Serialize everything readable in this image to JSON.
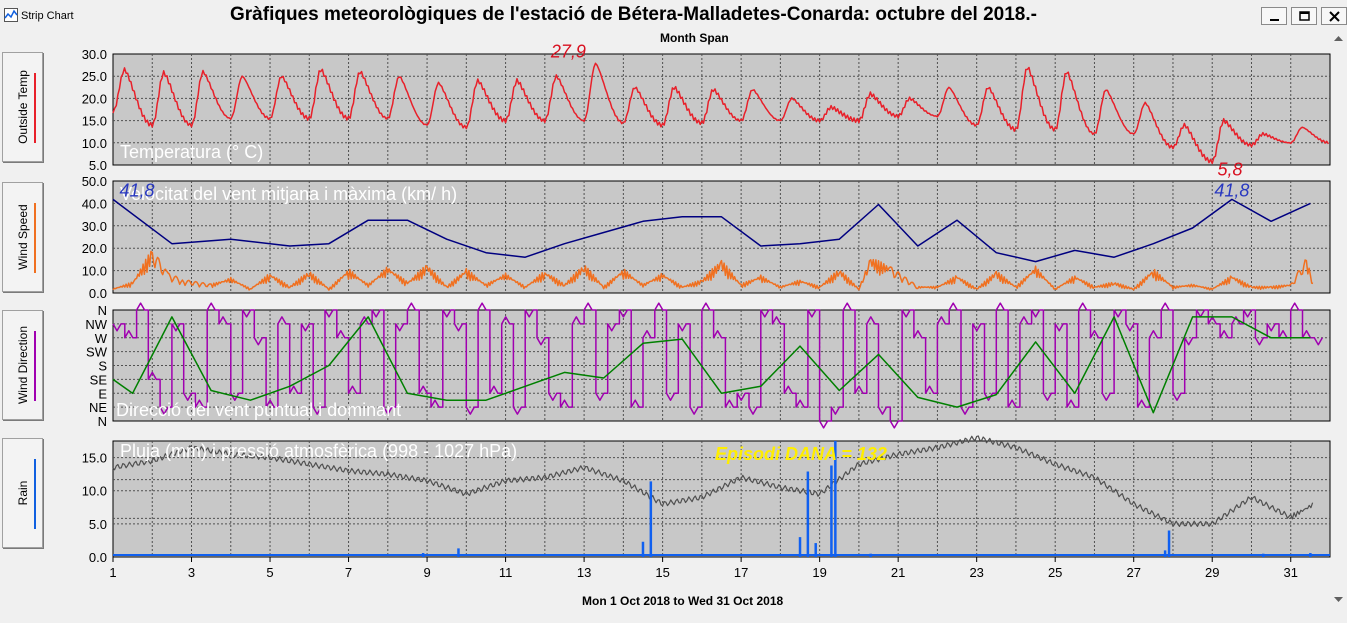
{
  "window": {
    "app_name": "Strip Chart",
    "title": "Gràfiques meteorològiques de l'estació de Bétera-Malladetes-Conarda: octubre del 2018.-",
    "subtitle": "Month Span",
    "footer": "Mon 1 Oct 2018  to  Wed 31 Oct 2018"
  },
  "side_buttons": [
    {
      "label": "Outside Temp",
      "color": "#e8202a"
    },
    {
      "label": "Wind Speed",
      "color": "#f07020"
    },
    {
      "label": "Wind Direction",
      "color": "#a000b0"
    },
    {
      "label": "Rain",
      "color": "#1060e0"
    }
  ],
  "colors": {
    "temperature": "#e8202a",
    "wind_avg": "#f07020",
    "wind_max": "#000080",
    "wind_dir_point": "#a000b0",
    "wind_dir_dominant": "#008000",
    "rain": "#1060f0",
    "pressure": "#505050",
    "grid": "#505050",
    "annotation_yellow": "#ffee00",
    "annotation_red": "#d81020",
    "annotation_blue": "#2838c0"
  },
  "chart_data": [
    {
      "type": "line",
      "name": "temperature",
      "label": "Temperatura (° C)",
      "ylim": [
        5,
        30
      ],
      "yticks": [
        "30.0",
        "25.0",
        "20.0",
        "15.0",
        "10.0",
        "5.0"
      ],
      "x_daily": [
        1,
        2,
        3,
        4,
        5,
        6,
        7,
        8,
        9,
        10,
        11,
        12,
        13,
        14,
        15,
        16,
        17,
        18,
        19,
        20,
        21,
        22,
        23,
        24,
        25,
        26,
        27,
        28,
        29,
        30,
        31
      ],
      "daily_max": [
        26.5,
        25.8,
        26.0,
        25.0,
        25.0,
        26.5,
        26.0,
        25.0,
        23.5,
        24.0,
        24.0,
        25.0,
        27.9,
        22.5,
        22.5,
        22.0,
        22.0,
        20.0,
        18.0,
        21.0,
        20.0,
        22.5,
        22.5,
        27.0,
        26.0,
        22.0,
        19.0,
        14.0,
        15.0,
        12.0,
        13.5
      ],
      "daily_min": [
        17.0,
        14.0,
        14.0,
        15.5,
        15.5,
        15.5,
        15.5,
        15.5,
        14.0,
        13.5,
        15.0,
        15.0,
        15.0,
        14.5,
        14.0,
        14.5,
        15.0,
        15.0,
        15.0,
        15.0,
        16.0,
        16.0,
        14.0,
        13.0,
        13.0,
        12.0,
        12.0,
        9.0,
        5.8,
        9.5,
        10.0
      ],
      "annotations": [
        {
          "text": "27,9",
          "x": 12.6,
          "y": 27.9,
          "color": "red"
        },
        {
          "text": "5,8",
          "x": 29.2,
          "y": 5.8,
          "color": "red"
        }
      ]
    },
    {
      "type": "line",
      "name": "wind_speed",
      "label": "Velocitat del vent mitjana i màxima (km/ h)",
      "ylim": [
        0,
        50
      ],
      "yticks": [
        "50.0",
        "40.0",
        "30.0",
        "20.0",
        "10.0",
        "0.0"
      ],
      "series": [
        {
          "name": "max",
          "x": [
            1,
            2.5,
            4,
            5.5,
            6.5,
            7.5,
            8.5,
            9.5,
            10.5,
            11.5,
            12.5,
            13.5,
            14.5,
            15.5,
            16.5,
            17.5,
            18.5,
            19.5,
            20.5,
            21.5,
            22.5,
            23.5,
            24.5,
            25.5,
            26.5,
            27.5,
            28.5,
            29.5,
            30.5,
            31.5
          ],
          "values": [
            41.8,
            22,
            24,
            21,
            22,
            32.5,
            32.5,
            24,
            18,
            16,
            22,
            27,
            32,
            34,
            34,
            21,
            22,
            24,
            39.5,
            21,
            32.5,
            18,
            14,
            19,
            16,
            22,
            29,
            41.8,
            32,
            40
          ]
        },
        {
          "name": "average",
          "x": [
            1,
            1.5,
            2,
            2.4,
            2.8,
            3.5,
            4,
            4.5,
            5,
            5.5,
            6,
            6.5,
            7,
            7.5,
            8,
            8.5,
            9,
            9.5,
            10,
            10.5,
            11,
            11.5,
            12,
            12.5,
            13,
            13.5,
            14,
            14.5,
            15,
            15.5,
            16,
            16.5,
            17,
            17.5,
            18,
            18.5,
            19,
            19.5,
            20,
            20.3,
            20.8,
            21.5,
            22,
            22.5,
            23,
            23.5,
            24,
            24.5,
            25,
            25.5,
            26,
            26.5,
            27,
            27.5,
            28,
            28.5,
            29,
            29.5,
            30,
            30.5,
            31,
            31.4,
            31.6
          ],
          "values": [
            2,
            5,
            20,
            9,
            6,
            4,
            7,
            2,
            9,
            3,
            10,
            2,
            11,
            4,
            12,
            5,
            13,
            3,
            11,
            4,
            9,
            3,
            10,
            4,
            13,
            3,
            11,
            4,
            9,
            3,
            6,
            15,
            4,
            8,
            3,
            6,
            3,
            11,
            2,
            16,
            12,
            3,
            3,
            8,
            2,
            10,
            3,
            12,
            2,
            8,
            3,
            5,
            2,
            11,
            3,
            4,
            2,
            8,
            3,
            3,
            4,
            16,
            2
          ]
        }
      ],
      "annotations": [
        {
          "text": "41,8",
          "x": 1.0,
          "y": 41.8,
          "color": "blue"
        },
        {
          "text": "41,8",
          "x": 29.5,
          "y": 41.8,
          "color": "blue"
        }
      ]
    },
    {
      "type": "line",
      "name": "wind_direction",
      "label": "Direcció del vent puntual i dominant",
      "y_categories": [
        "N",
        "NE",
        "E",
        "SE",
        "S",
        "SW",
        "W",
        "NW",
        "N"
      ],
      "series": [
        {
          "name": "dominant",
          "x": [
            1,
            1.5,
            2.5,
            3.5,
            4.5,
            5.5,
            6.5,
            7.5,
            8.5,
            9.5,
            10.5,
            11.5,
            12.5,
            13.5,
            14.5,
            15.5,
            16.5,
            17.5,
            18.5,
            19.5,
            20.5,
            21.5,
            22.5,
            23.5,
            24.5,
            25.5,
            26.5,
            27.5,
            28.5,
            29.5,
            30.5,
            31.5
          ],
          "values": [
            3,
            2,
            7.5,
            2.2,
            1.5,
            2.5,
            4,
            7.5,
            2,
            1.5,
            1.5,
            2.5,
            3.5,
            3.1,
            5.6,
            5.9,
            2,
            2.5,
            5.4,
            2.2,
            4.8,
            1.7,
            1,
            1.9,
            5.7,
            2,
            7.5,
            0.6,
            7.5,
            7.5,
            6,
            6
          ]
        },
        {
          "name": "point",
          "x": [
            1,
            1.3,
            1.6,
            1.9,
            2.2,
            2.5,
            2.8,
            3.1,
            3.4,
            3.7,
            4,
            4.3,
            4.6,
            4.9,
            5.2,
            5.5,
            5.8,
            6.1,
            6.4,
            6.7,
            7,
            7.3,
            7.6,
            7.9,
            8.2,
            8.5,
            8.8,
            9.1,
            9.4,
            9.7,
            10,
            10.3,
            10.6,
            10.9,
            11.2,
            11.5,
            11.8,
            12.1,
            12.4,
            12.7,
            13,
            13.3,
            13.6,
            13.9,
            14.2,
            14.5,
            14.8,
            15.1,
            15.4,
            15.7,
            16,
            16.3,
            16.6,
            16.9,
            17.2,
            17.5,
            17.8,
            18.1,
            18.4,
            18.7,
            19,
            19.3,
            19.6,
            19.9,
            20.2,
            20.5,
            20.8,
            21.1,
            21.4,
            21.7,
            22,
            22.3,
            22.6,
            22.9,
            23.2,
            23.5,
            23.8,
            24.1,
            24.4,
            24.7,
            25,
            25.3,
            25.6,
            25.9,
            26.2,
            26.5,
            26.8,
            27.1,
            27.4,
            27.7,
            28,
            28.3,
            28.6,
            28.9,
            29.2,
            29.5,
            29.8,
            30.1,
            30.4,
            30.7,
            31,
            31.3,
            31.6
          ],
          "values": [
            7,
            6,
            8,
            3,
            1,
            7,
            2,
            1,
            8,
            7,
            2,
            8,
            6,
            1,
            7,
            2,
            7,
            1,
            8,
            6,
            2,
            7,
            8,
            1,
            7,
            8,
            2,
            1,
            8,
            7,
            1,
            8,
            2,
            7,
            1,
            8,
            6,
            2,
            1,
            7,
            8,
            2,
            7,
            8,
            1,
            6,
            8,
            2,
            7,
            1,
            8,
            6,
            1,
            2,
            1,
            8,
            7,
            2,
            1,
            8,
            0,
            1,
            8,
            2,
            7,
            1,
            0,
            8,
            6,
            2,
            7,
            8,
            1,
            7,
            2,
            8,
            1,
            7,
            8,
            2,
            7,
            1,
            8,
            6,
            2,
            8,
            7,
            1,
            6,
            8,
            2,
            6,
            8,
            7,
            6,
            7,
            8,
            6,
            7,
            6,
            8,
            6,
            6
          ]
        }
      ]
    },
    {
      "type": "line",
      "name": "rain_pressure",
      "label": "Pluja (mm) i pressió atmosfèrica (998 - 1027 hPa)",
      "ylim": [
        0,
        17.5
      ],
      "yticks": [
        "15.0",
        "10.0",
        "5.0",
        "0.0"
      ],
      "series": [
        {
          "name": "rain",
          "x": [
            8.9,
            9.8,
            14.5,
            14.7,
            18.5,
            18.7,
            18.9,
            19.3,
            19.4,
            20.3,
            27.8,
            27.9,
            30.3,
            31.5
          ],
          "values": [
            0.6,
            1.3,
            2.3,
            11.4,
            3.0,
            12.9,
            2.1,
            13.8,
            17.5,
            0.5,
            1.0,
            4.0,
            0.5,
            0.6
          ]
        },
        {
          "name": "pressure",
          "x": [
            1,
            2,
            3,
            4,
            5,
            6,
            7,
            8,
            9,
            10,
            11,
            12,
            13,
            14,
            15,
            16,
            17,
            18,
            19,
            20,
            21,
            22,
            23,
            24,
            25,
            26,
            27,
            28,
            29,
            30,
            31,
            31.6
          ],
          "values": [
            13.5,
            14.5,
            16.5,
            15.5,
            15,
            14,
            13,
            12.5,
            11.5,
            9.5,
            11.5,
            12,
            13.5,
            11.5,
            8,
            9,
            12,
            10.5,
            9.5,
            14,
            15.5,
            16.5,
            18,
            16.5,
            14,
            12,
            8,
            5,
            5,
            9,
            6,
            8
          ]
        }
      ],
      "annotations": [
        {
          "text": "Episodi DANA = 132",
          "x": 15.0,
          "y": 15.8,
          "color": "yellow"
        }
      ]
    }
  ],
  "x_axis": {
    "ticks": [
      "1",
      "3",
      "5",
      "7",
      "9",
      "11",
      "13",
      "15",
      "17",
      "19",
      "21",
      "23",
      "25",
      "27",
      "29",
      "31"
    ],
    "range": [
      1,
      32
    ]
  }
}
